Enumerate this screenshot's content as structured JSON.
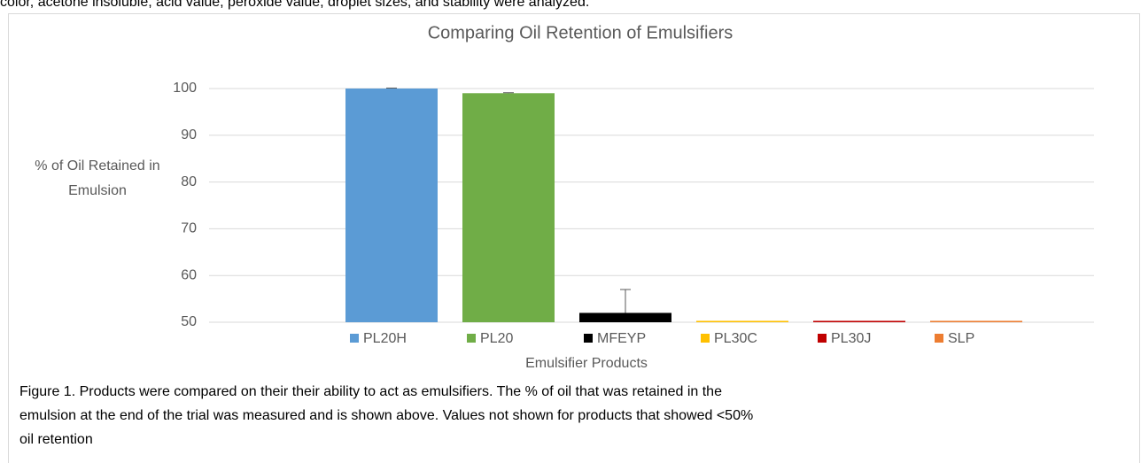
{
  "intro_text": "color, acetone insoluble, acid value, peroxide value, droplet sizes, and stability were analyzed.",
  "chart_data": {
    "type": "bar",
    "title": "Comparing Oil Retention of Emulsifiers",
    "ylabel": [
      "% of Oil Retained in",
      "Emulsion"
    ],
    "xlabel": "Emulsifier Products",
    "categories": [
      "PL20H",
      "PL20",
      "MFEYP",
      "PL30C",
      "PL30J",
      "SLP"
    ],
    "values": [
      100,
      99,
      52,
      50.3,
      50.3,
      50.3
    ],
    "errors": [
      0.1,
      0.1,
      5,
      0,
      0,
      0
    ],
    "colors": [
      "#5b9bd5",
      "#70ad47",
      "#000000",
      "#ffc000",
      "#c00000",
      "#ed7d31"
    ],
    "ylim": [
      50,
      100
    ],
    "yticks": [
      50,
      60,
      70,
      80,
      90,
      100
    ],
    "grid": true
  },
  "caption": [
    "Figure 1. Products were compared on their their ability to act as emulsifiers. The % of oil that was retained in the",
    "emulsion at the end of the trial was measured and is shown above. Values not shown for products that showed <50%",
    "oil retention"
  ]
}
